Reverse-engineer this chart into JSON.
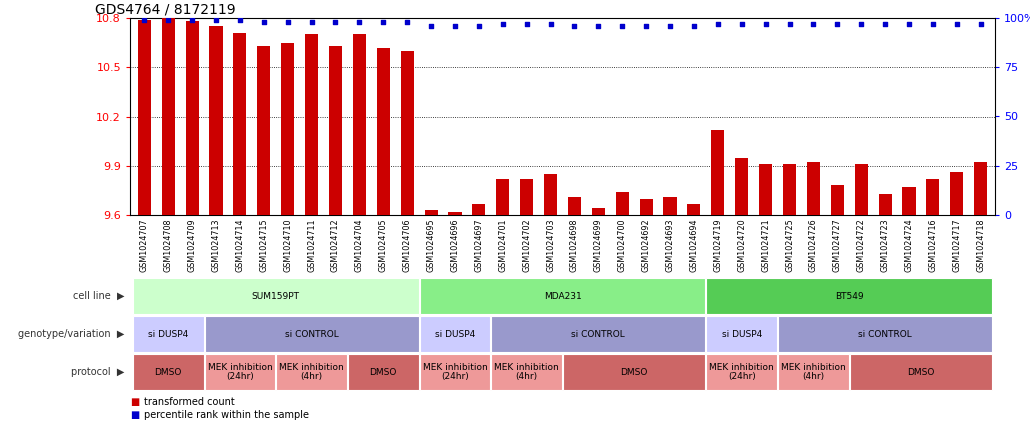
{
  "title": "GDS4764 / 8172119",
  "samples": [
    "GSM1024707",
    "GSM1024708",
    "GSM1024709",
    "GSM1024713",
    "GSM1024714",
    "GSM1024715",
    "GSM1024710",
    "GSM1024711",
    "GSM1024712",
    "GSM1024704",
    "GSM1024705",
    "GSM1024706",
    "GSM1024695",
    "GSM1024696",
    "GSM1024697",
    "GSM1024701",
    "GSM1024702",
    "GSM1024703",
    "GSM1024698",
    "GSM1024699",
    "GSM1024700",
    "GSM1024692",
    "GSM1024693",
    "GSM1024694",
    "GSM1024719",
    "GSM1024720",
    "GSM1024721",
    "GSM1024725",
    "GSM1024726",
    "GSM1024727",
    "GSM1024722",
    "GSM1024723",
    "GSM1024724",
    "GSM1024716",
    "GSM1024717",
    "GSM1024718"
  ],
  "red_values": [
    10.79,
    10.8,
    10.78,
    10.75,
    10.71,
    10.63,
    10.65,
    10.7,
    10.63,
    10.7,
    10.62,
    10.6,
    9.63,
    9.62,
    9.67,
    9.82,
    9.82,
    9.85,
    9.71,
    9.64,
    9.74,
    9.7,
    9.71,
    9.67,
    10.12,
    9.95,
    9.91,
    9.91,
    9.92,
    9.78,
    9.91,
    9.73,
    9.77,
    9.82,
    9.86,
    9.92
  ],
  "blue_values": [
    99,
    99,
    99,
    99,
    99,
    98,
    98,
    98,
    98,
    98,
    98,
    98,
    96,
    96,
    96,
    97,
    97,
    97,
    96,
    96,
    96,
    96,
    96,
    96,
    97,
    97,
    97,
    97,
    97,
    97,
    97,
    97,
    97,
    97,
    97,
    97
  ],
  "ylim_left": [
    9.6,
    10.8
  ],
  "ylim_right": [
    0,
    100
  ],
  "yticks_left": [
    9.6,
    9.9,
    10.2,
    10.5,
    10.8
  ],
  "yticks_right": [
    0,
    25,
    50,
    75,
    100
  ],
  "bar_color": "#cc0000",
  "dot_color": "#0000cc",
  "bg_color": "#ffffff",
  "cell_line_groups": [
    {
      "label": "SUM159PT",
      "start": 0,
      "end": 11,
      "color": "#ccffcc"
    },
    {
      "label": "MDA231",
      "start": 12,
      "end": 23,
      "color": "#88ee88"
    },
    {
      "label": "BT549",
      "start": 24,
      "end": 35,
      "color": "#55cc55"
    }
  ],
  "genotype_groups": [
    {
      "label": "si DUSP4",
      "start": 0,
      "end": 2,
      "color": "#ccccff"
    },
    {
      "label": "si CONTROL",
      "start": 3,
      "end": 11,
      "color": "#9999cc"
    },
    {
      "label": "si DUSP4",
      "start": 12,
      "end": 14,
      "color": "#ccccff"
    },
    {
      "label": "si CONTROL",
      "start": 15,
      "end": 23,
      "color": "#9999cc"
    },
    {
      "label": "si DUSP4",
      "start": 24,
      "end": 26,
      "color": "#ccccff"
    },
    {
      "label": "si CONTROL",
      "start": 27,
      "end": 35,
      "color": "#9999cc"
    }
  ],
  "protocol_groups": [
    {
      "label": "DMSO",
      "start": 0,
      "end": 2,
      "color": "#cc6666"
    },
    {
      "label": "MEK inhibition\n(24hr)",
      "start": 3,
      "end": 5,
      "color": "#ee9999"
    },
    {
      "label": "MEK inhibition\n(4hr)",
      "start": 6,
      "end": 8,
      "color": "#ee9999"
    },
    {
      "label": "DMSO",
      "start": 9,
      "end": 11,
      "color": "#cc6666"
    },
    {
      "label": "MEK inhibition\n(24hr)",
      "start": 12,
      "end": 14,
      "color": "#ee9999"
    },
    {
      "label": "MEK inhibition\n(4hr)",
      "start": 15,
      "end": 17,
      "color": "#ee9999"
    },
    {
      "label": "DMSO",
      "start": 18,
      "end": 23,
      "color": "#cc6666"
    },
    {
      "label": "MEK inhibition\n(24hr)",
      "start": 24,
      "end": 26,
      "color": "#ee9999"
    },
    {
      "label": "MEK inhibition\n(4hr)",
      "start": 27,
      "end": 29,
      "color": "#ee9999"
    },
    {
      "label": "DMSO",
      "start": 30,
      "end": 35,
      "color": "#cc6666"
    }
  ],
  "legend_labels": [
    "transformed count",
    "percentile rank within the sample"
  ],
  "legend_colors": [
    "#cc0000",
    "#0000cc"
  ],
  "row_labels": [
    "cell line",
    "genotype/variation",
    "protocol"
  ]
}
